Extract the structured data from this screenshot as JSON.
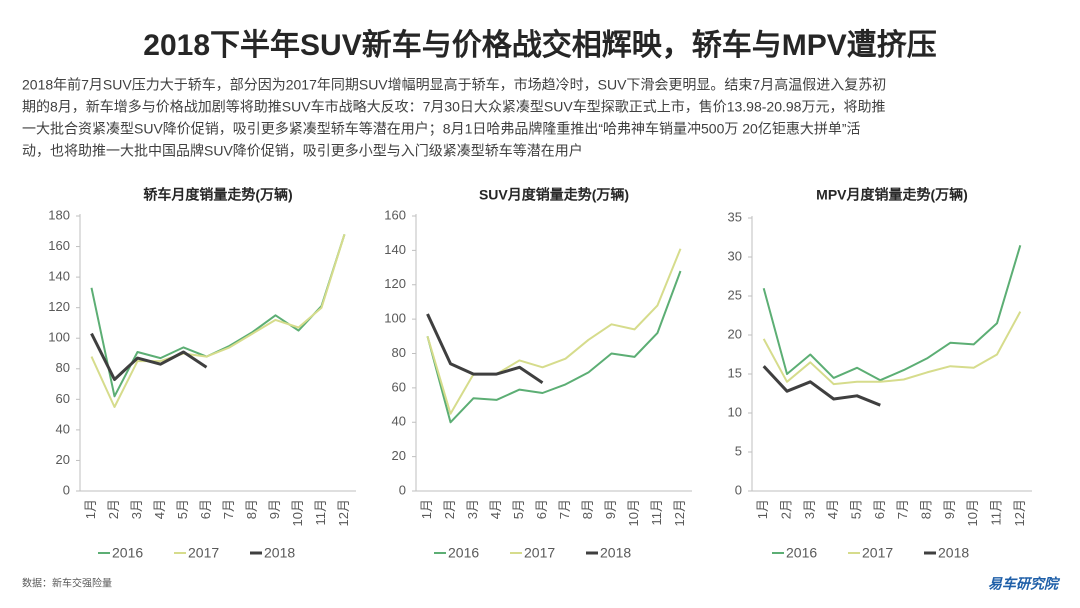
{
  "title": "2018下半年SUV新车与价格战交相辉映，轿车与MPV遭挤压",
  "description": [
    "2018年前7月SUV压力大于轿车，部分因为2017年同期SUV增幅明显高于轿车，市场趋冷时，SUV下滑会更明显。结束7月高温假进入复苏初",
    "期的8月，新车增多与价格战加剧等将助推SUV车市战略大反攻：7月30日大众紧凑型SUV车型探歌正式上市，售价13.98-20.98万元，将助推",
    "一大批合资紧凑型SUV降价促销，吸引更多紧凑型轿车等潜在用户；8月1日哈弗品牌隆重推出“哈弗神车销量冲500万 20亿钜惠大拼单”活",
    "动，也将助推一大批中国品牌SUV降价促销，吸引更多小型与入门级紧凑型轿车等潜在用户"
  ],
  "source": "数据：新车交强险量",
  "logo": "易车研究院",
  "chart_data": [
    {
      "type": "line",
      "title": "轿车月度销量走势(万辆)",
      "categories": [
        "1月",
        "2月",
        "3月",
        "4月",
        "5月",
        "6月",
        "7月",
        "8月",
        "9月",
        "10月",
        "11月",
        "12月"
      ],
      "ylim": [
        0,
        180
      ],
      "yticks": [
        0,
        20,
        40,
        60,
        80,
        100,
        120,
        140,
        160,
        180
      ],
      "grid": false,
      "legend": "bottom",
      "series": [
        {
          "name": "2016",
          "color": "#5cae74",
          "values": [
            133,
            62,
            91,
            87,
            94,
            88,
            95,
            104,
            115,
            105,
            121,
            168
          ]
        },
        {
          "name": "2017",
          "color": "#d6dc8c",
          "values": [
            88,
            55,
            85,
            85,
            90,
            88,
            94,
            103,
            112,
            107,
            120,
            168
          ]
        },
        {
          "name": "2018",
          "color": "#3f3f3f",
          "values": [
            103,
            73,
            87,
            83,
            91,
            81,
            null,
            null,
            null,
            null,
            null,
            null
          ]
        }
      ]
    },
    {
      "type": "line",
      "title": "SUV月度销量走势(万辆)",
      "categories": [
        "1月",
        "2月",
        "3月",
        "4月",
        "5月",
        "6月",
        "7月",
        "8月",
        "9月",
        "10月",
        "11月",
        "12月"
      ],
      "ylim": [
        0,
        160
      ],
      "yticks": [
        0,
        20,
        40,
        60,
        80,
        100,
        120,
        140,
        160
      ],
      "grid": false,
      "legend": "bottom",
      "series": [
        {
          "name": "2016",
          "color": "#5cae74",
          "values": [
            90,
            40,
            54,
            53,
            59,
            57,
            62,
            69,
            80,
            78,
            92,
            128
          ]
        },
        {
          "name": "2017",
          "color": "#d6dc8c",
          "values": [
            90,
            45,
            68,
            68,
            76,
            72,
            77,
            88,
            97,
            94,
            108,
            141
          ]
        },
        {
          "name": "2018",
          "color": "#3f3f3f",
          "values": [
            103,
            74,
            68,
            68,
            72,
            63,
            null,
            null,
            null,
            null,
            null,
            null
          ]
        }
      ]
    },
    {
      "type": "line",
      "title": "MPV月度销量走势(万辆)",
      "categories": [
        "1月",
        "2月",
        "3月",
        "4月",
        "5月",
        "6月",
        "7月",
        "8月",
        "9月",
        "10月",
        "11月",
        "12月"
      ],
      "ylim": [
        0,
        35
      ],
      "yticks": [
        0,
        5,
        10,
        15,
        20,
        25,
        30,
        35
      ],
      "grid": false,
      "legend": "bottom",
      "series": [
        {
          "name": "2016",
          "color": "#5cae74",
          "values": [
            26,
            15,
            17.5,
            14.5,
            15.8,
            14.2,
            15.5,
            17,
            19,
            18.8,
            21.5,
            31.5
          ]
        },
        {
          "name": "2017",
          "color": "#d6dc8c",
          "values": [
            19.5,
            14,
            16.5,
            13.7,
            14,
            14,
            14.3,
            15.2,
            16,
            15.8,
            17.5,
            23
          ]
        },
        {
          "name": "2018",
          "color": "#3f3f3f",
          "values": [
            16,
            12.8,
            14,
            11.8,
            12.2,
            11,
            null,
            null,
            null,
            null,
            null,
            null
          ]
        }
      ]
    }
  ]
}
